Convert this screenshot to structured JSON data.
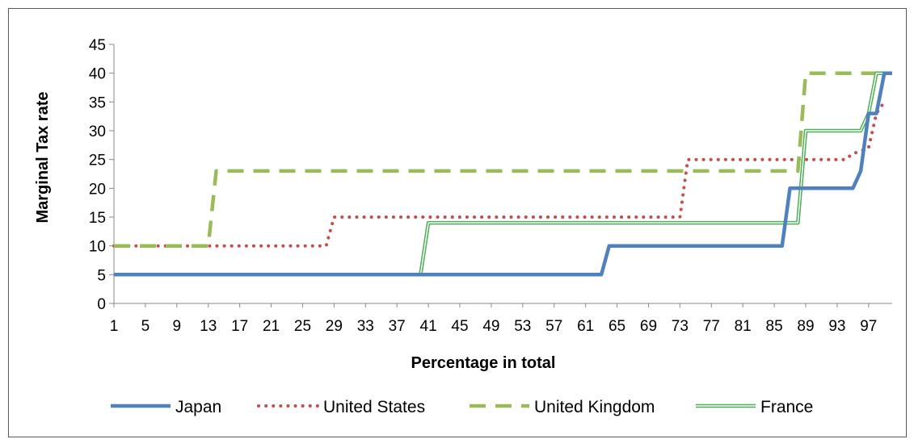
{
  "chart_data": {
    "type": "line",
    "title": "",
    "xlabel": "Percentage in total",
    "ylabel": "Marginal Tax rate",
    "xlim": [
      1,
      100
    ],
    "ylim": [
      0,
      45
    ],
    "x_ticks": [
      1,
      5,
      9,
      13,
      17,
      21,
      25,
      29,
      33,
      37,
      41,
      45,
      49,
      53,
      57,
      61,
      65,
      69,
      73,
      77,
      81,
      85,
      89,
      93,
      97
    ],
    "y_ticks": [
      0,
      5,
      10,
      15,
      20,
      25,
      30,
      35,
      40,
      45
    ],
    "grid": false,
    "legend_position": "bottom",
    "series": [
      {
        "name": "Japan",
        "color": "#4f81bd",
        "style": "solid",
        "points": [
          [
            1,
            5
          ],
          [
            63,
            5
          ],
          [
            64,
            10
          ],
          [
            86,
            10
          ],
          [
            87,
            20
          ],
          [
            95,
            20
          ],
          [
            96,
            23
          ],
          [
            97,
            33
          ],
          [
            98,
            33
          ],
          [
            99,
            40
          ],
          [
            100,
            40
          ]
        ]
      },
      {
        "name": "United States",
        "color": "#c0504d",
        "style": "dotted",
        "points": [
          [
            1,
            10
          ],
          [
            28,
            10
          ],
          [
            29,
            15
          ],
          [
            73,
            15
          ],
          [
            74,
            25
          ],
          [
            94,
            25
          ],
          [
            95,
            26
          ],
          [
            97,
            27
          ],
          [
            98,
            33
          ],
          [
            99,
            35
          ]
        ]
      },
      {
        "name": "United Kingdom",
        "color": "#9bbb59",
        "style": "dashed",
        "points": [
          [
            1,
            10
          ],
          [
            13,
            10
          ],
          [
            14,
            23
          ],
          [
            88,
            23
          ],
          [
            89,
            40
          ],
          [
            100,
            40
          ]
        ]
      },
      {
        "name": "France",
        "color": "#4cae57",
        "style": "double",
        "points": [
          [
            1,
            5
          ],
          [
            40,
            5
          ],
          [
            41,
            14
          ],
          [
            88,
            14
          ],
          [
            89,
            30
          ],
          [
            96,
            30
          ],
          [
            97,
            33
          ],
          [
            98,
            40
          ],
          [
            100,
            40
          ]
        ]
      }
    ]
  }
}
